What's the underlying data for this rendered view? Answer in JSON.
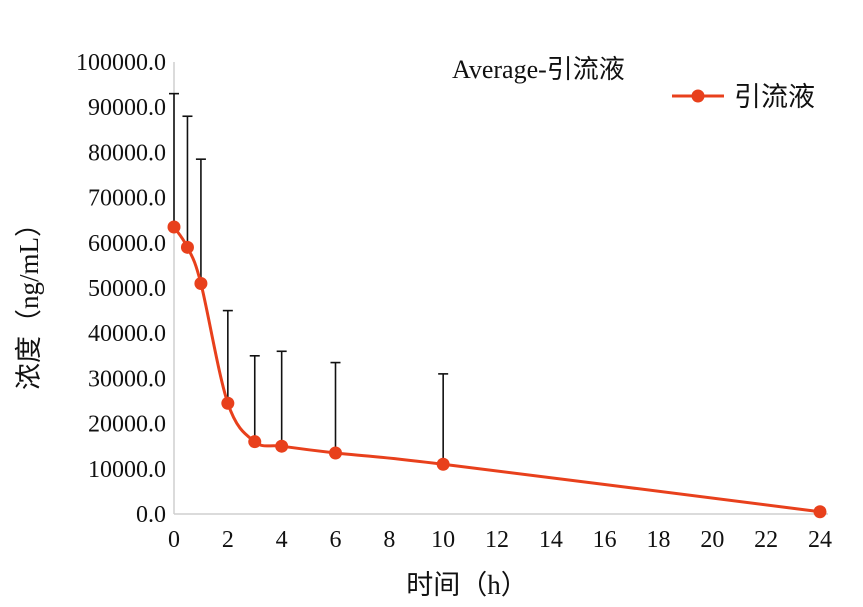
{
  "chart_data": {
    "type": "line",
    "title": "Average-引流液",
    "xlabel": "时间（h）",
    "ylabel": "浓度（ng/mL）",
    "x_ticks": [
      0,
      2,
      4,
      6,
      8,
      10,
      12,
      14,
      16,
      18,
      20,
      22,
      24
    ],
    "y_ticks": [
      "0.0",
      "10000.0",
      "20000.0",
      "30000.0",
      "40000.0",
      "50000.0",
      "60000.0",
      "70000.0",
      "80000.0",
      "90000.0",
      "100000.0"
    ],
    "xlim": [
      0,
      24
    ],
    "ylim": [
      0,
      100000
    ],
    "grid": false,
    "legend_position": "top-right",
    "series": [
      {
        "name": "引流液",
        "color": "#e8401c",
        "x": [
          0,
          0.5,
          1,
          2,
          3,
          4,
          6,
          10,
          24
        ],
        "y": [
          63500,
          59000,
          51000,
          24500,
          16000,
          15000,
          13500,
          11000,
          500
        ],
        "error_upper": [
          93000,
          88000,
          78500,
          45000,
          35000,
          36000,
          33500,
          31000,
          null
        ]
      }
    ]
  }
}
